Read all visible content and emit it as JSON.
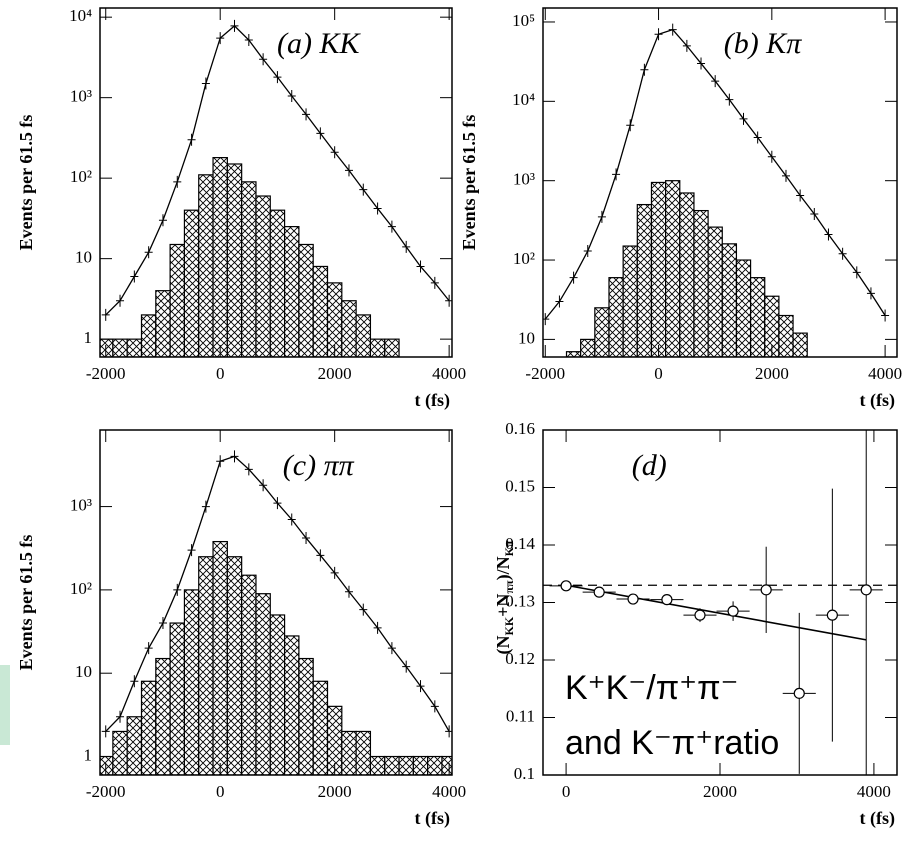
{
  "chart_data": [
    {
      "type": "line",
      "title": "(a) KK",
      "ylabel": "Events per 61.5 fs",
      "xlabel": "t (fs)",
      "log_y": true,
      "xlim": [
        -2100,
        4050
      ],
      "ylim": [
        0.6,
        13000
      ],
      "xticks": [
        -2000,
        0,
        2000,
        4000
      ],
      "yticks": [
        1,
        10,
        {
          "value": 100,
          "label": "10²"
        },
        {
          "value": 1000,
          "label": "10³"
        },
        {
          "value": 10000,
          "label": "10⁴"
        }
      ],
      "x": [
        -2000,
        -1750,
        -1500,
        -1250,
        -1000,
        -750,
        -500,
        -250,
        0,
        250,
        500,
        750,
        1000,
        1250,
        1500,
        1750,
        2000,
        2250,
        2500,
        2750,
        3000,
        3250,
        3500,
        3750,
        4000
      ],
      "series": [
        {
          "color": "#000000",
          "marker": "+",
          "values": [
            2,
            3,
            6,
            12,
            30,
            90,
            300,
            1500,
            5500,
            7800,
            5200,
            3000,
            1800,
            1050,
            620,
            360,
            210,
            125,
            72,
            42,
            25,
            14,
            8,
            5,
            3
          ]
        },
        {
          "color": "#000000",
          "fill": "hatched",
          "values": [
            1,
            1,
            1,
            2,
            4,
            15,
            40,
            110,
            180,
            150,
            90,
            60,
            40,
            25,
            15,
            8,
            5,
            3,
            2,
            1,
            1,
            null,
            null,
            null,
            null
          ]
        }
      ]
    },
    {
      "type": "line",
      "title": "(b) Kπ",
      "ylabel": "Events per 61.5 fs",
      "xlabel": "t (fs)",
      "log_y": true,
      "xlim": [
        -2040,
        4210
      ],
      "ylim": [
        6,
        150000
      ],
      "xticks": [
        -2000,
        0,
        2000,
        4000
      ],
      "yticks": [
        10,
        {
          "value": 100,
          "label": "10²"
        },
        {
          "value": 1000,
          "label": "10³"
        },
        {
          "value": 10000,
          "label": "10⁴"
        },
        {
          "value": 100000,
          "label": "10⁵"
        }
      ],
      "x": [
        -2000,
        -1750,
        -1500,
        -1250,
        -1000,
        -750,
        -500,
        -250,
        0,
        250,
        500,
        750,
        1000,
        1250,
        1500,
        1750,
        2000,
        2250,
        2500,
        2750,
        3000,
        3250,
        3500,
        3750,
        4000
      ],
      "series": [
        {
          "color": "#000000",
          "marker": "+",
          "values": [
            18,
            30,
            60,
            130,
            350,
            1200,
            5000,
            25000,
            70000,
            80000,
            50000,
            30000,
            18000,
            10500,
            6000,
            3500,
            2000,
            1150,
            650,
            380,
            210,
            120,
            70,
            38,
            20
          ]
        },
        {
          "color": "#000000",
          "fill": "hatched",
          "values": [
            null,
            null,
            7,
            10,
            25,
            60,
            150,
            500,
            950,
            1000,
            700,
            420,
            260,
            160,
            100,
            60,
            35,
            20,
            12,
            null,
            null,
            null,
            null,
            null,
            null
          ]
        }
      ]
    },
    {
      "type": "line",
      "title": "(c) ππ",
      "ylabel": "Events per 61.5 fs",
      "xlabel": "t (fs)",
      "log_y": true,
      "xlim": [
        -2100,
        4050
      ],
      "ylim": [
        0.6,
        8300
      ],
      "xticks": [
        -2000,
        0,
        2000,
        4000
      ],
      "yticks": [
        1,
        10,
        {
          "value": 100,
          "label": "10²"
        },
        {
          "value": 1000,
          "label": "10³"
        }
      ],
      "x": [
        -2000,
        -1750,
        -1500,
        -1250,
        -1000,
        -750,
        -500,
        -250,
        0,
        250,
        500,
        750,
        1000,
        1250,
        1500,
        1750,
        2000,
        2250,
        2500,
        2750,
        3000,
        3250,
        3500,
        3750,
        4000
      ],
      "series": [
        {
          "color": "#000000",
          "marker": "+",
          "values": [
            2,
            3,
            8,
            20,
            40,
            100,
            300,
            1000,
            3500,
            4000,
            2800,
            1800,
            1100,
            700,
            420,
            260,
            160,
            95,
            58,
            35,
            20,
            12,
            7,
            4,
            2
          ]
        },
        {
          "color": "#000000",
          "fill": "hatched",
          "values": [
            1,
            2,
            3,
            8,
            15,
            40,
            100,
            250,
            380,
            250,
            150,
            90,
            50,
            28,
            15,
            8,
            4,
            2,
            2,
            1,
            1,
            1,
            1,
            1,
            1
          ]
        }
      ]
    },
    {
      "type": "scatter",
      "title": "(d)",
      "ylabel": [
        "(N",
        "KK",
        "+N",
        "ππ",
        ")/N",
        "Kπ"
      ],
      "xlabel": "t (fs)",
      "xlim": [
        -300,
        4300
      ],
      "ylim": [
        0.1,
        0.16
      ],
      "xticks": [
        0,
        2000,
        4000
      ],
      "yticks": [
        0.1,
        0.11,
        0.12,
        0.13,
        0.14,
        0.15,
        0.16
      ],
      "x": [
        0,
        430,
        870,
        1310,
        1740,
        2170,
        2600,
        3030,
        3460,
        3900
      ],
      "values": [
        0.1329,
        0.1318,
        0.1306,
        0.1305,
        0.1278,
        0.1285,
        0.1322,
        0.1142,
        0.1278,
        0.1322
      ],
      "y_err": [
        0.0003,
        0.0003,
        0.0004,
        0.0008,
        0.0012,
        0.0017,
        0.0075,
        0.014,
        0.022,
        0.04
      ],
      "x_err": [
        215,
        215,
        215,
        215,
        215,
        215,
        215,
        215,
        215,
        215
      ],
      "fit_x": [
        0,
        3900
      ],
      "fit_values": [
        0.133,
        0.1235
      ],
      "reference": 0.133,
      "annotations": [
        "K⁺K⁻/π⁺π⁻",
        "and K⁻π⁺ratio"
      ]
    }
  ]
}
